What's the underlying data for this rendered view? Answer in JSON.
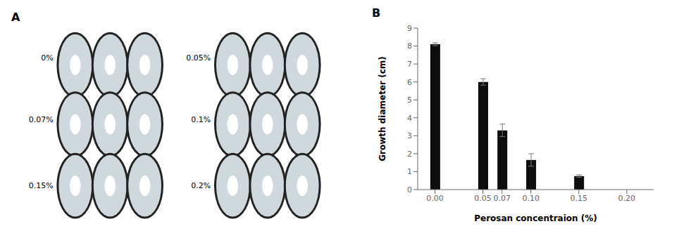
{
  "chart_data": [
    {
      "type": "image",
      "title": "A",
      "annotations": [
        "0%",
        "0.07%",
        "0.15%",
        "0.05%",
        "0.1%",
        "0.2%"
      ]
    },
    {
      "type": "bar",
      "title": "B",
      "x": [
        0.0,
        0.05,
        0.07,
        0.1,
        0.15,
        0.2
      ],
      "values": [
        8.1,
        6.0,
        3.3,
        1.65,
        0.75,
        0.0
      ],
      "error_bars": [
        0.08,
        0.18,
        0.35,
        0.35,
        0.07,
        0.0
      ],
      "color": "#0d0d0d",
      "xlabel": "Perosan concentraion (%)",
      "ylabel": "Growth diameter (cm)",
      "xlim": [
        -0.018,
        0.228
      ],
      "xticks": [
        {
          "value": 0,
          "label": "0.00"
        },
        0.05,
        0.07,
        {
          "value": 0.1,
          "label": "0.10"
        },
        0.15,
        {
          "value": 0.2,
          "label": "0.20"
        }
      ],
      "ylim": [
        0,
        9
      ],
      "yticks": [
        0,
        1,
        2,
        3,
        4,
        5,
        6,
        7,
        8,
        9
      ]
    }
  ]
}
